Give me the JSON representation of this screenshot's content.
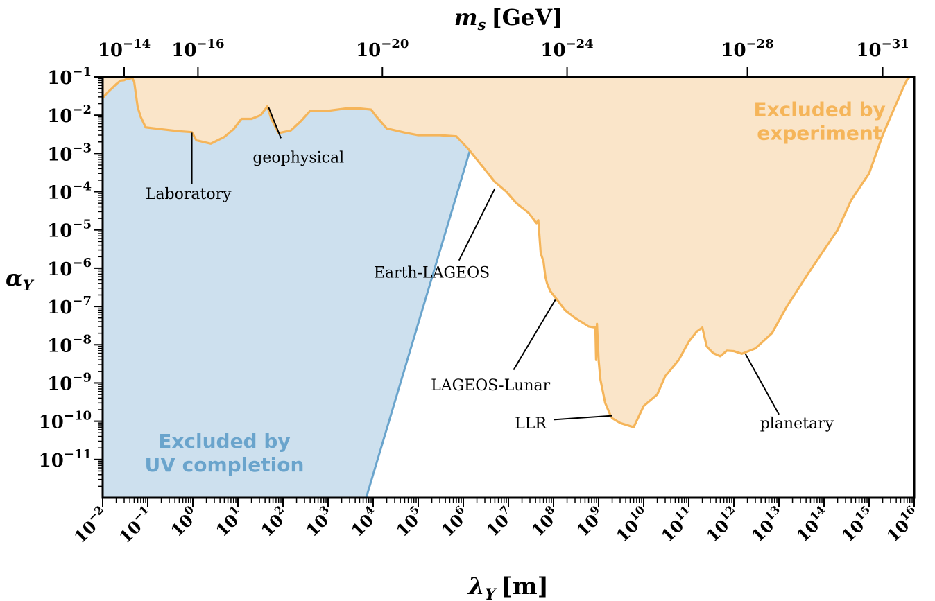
{
  "chart_data": {
    "type": "area",
    "xlabel": "λ",
    "xlabel_sub": "Y",
    "xlabel_unit": "[m]",
    "ylabel": "α",
    "ylabel_sub": "Y",
    "top_axis_label": "m",
    "top_axis_sub": "s",
    "top_axis_unit": "[GeV]",
    "x_scale": "log",
    "y_scale": "log",
    "xlim": [
      0.01,
      1e+16
    ],
    "ylim": [
      1e-12,
      0.1
    ],
    "grid": false,
    "x_ticks": [
      {
        "value": 0.01,
        "exp": "−2"
      },
      {
        "value": 0.1,
        "exp": "−1"
      },
      {
        "value": 1,
        "exp": "0"
      },
      {
        "value": 10,
        "exp": "1"
      },
      {
        "value": 100,
        "exp": "2"
      },
      {
        "value": 1000,
        "exp": "3"
      },
      {
        "value": 10000,
        "exp": "4"
      },
      {
        "value": 100000,
        "exp": "5"
      },
      {
        "value": 1000000,
        "exp": "6"
      },
      {
        "value": 10000000,
        "exp": "7"
      },
      {
        "value": 100000000,
        "exp": "8"
      },
      {
        "value": 1000000000,
        "exp": "9"
      },
      {
        "value": 10000000000,
        "exp": "10"
      },
      {
        "value": 100000000000,
        "exp": "11"
      },
      {
        "value": 1000000000000,
        "exp": "12"
      },
      {
        "value": 10000000000000,
        "exp": "13"
      },
      {
        "value": 100000000000000,
        "exp": "14"
      },
      {
        "value": 1000000000000000,
        "exp": "15"
      },
      {
        "value": 10000000000000000,
        "exp": "16"
      }
    ],
    "y_ticks": [
      {
        "value": 0.1,
        "exp": "−1"
      },
      {
        "value": 0.01,
        "exp": "−2"
      },
      {
        "value": 0.001,
        "exp": "−3"
      },
      {
        "value": 0.0001,
        "exp": "−4"
      },
      {
        "value": 1e-05,
        "exp": "−5"
      },
      {
        "value": 1e-06,
        "exp": "−6"
      },
      {
        "value": 1e-07,
        "exp": "−7"
      },
      {
        "value": 1e-08,
        "exp": "−8"
      },
      {
        "value": 1e-09,
        "exp": "−9"
      },
      {
        "value": 1e-10,
        "exp": "−10"
      },
      {
        "value": 1e-11,
        "exp": "−11"
      }
    ],
    "top_ticks": [
      {
        "lambda": 0.03,
        "exp": "−14"
      },
      {
        "lambda": 1.3,
        "exp": "−16"
      },
      {
        "lambda": 16000.0,
        "exp": "−20"
      },
      {
        "lambda": 200000000.0,
        "exp": "−24"
      },
      {
        "lambda": 2000000000000.0,
        "exp": "−28"
      },
      {
        "lambda": 2000000000000000.0,
        "exp": "−31"
      }
    ],
    "series": [
      {
        "name": "Excluded by experiment",
        "color": "#f5b55a",
        "fill": "#fae5c9",
        "points": [
          [
            0.01,
            0.028
          ],
          [
            0.013,
            0.04
          ],
          [
            0.016,
            0.05
          ],
          [
            0.02,
            0.065
          ],
          [
            0.025,
            0.08
          ],
          [
            0.03,
            0.082
          ],
          [
            0.035,
            0.09
          ],
          [
            0.04,
            0.09
          ],
          [
            0.045,
            0.095
          ],
          [
            0.05,
            0.075
          ],
          [
            0.06,
            0.016
          ],
          [
            0.07,
            0.009
          ],
          [
            0.09,
            0.0048
          ],
          [
            0.2,
            0.0043
          ],
          [
            0.5,
            0.0038
          ],
          [
            0.95,
            0.0036
          ],
          [
            1.2,
            0.0022
          ],
          [
            2.5,
            0.0018
          ],
          [
            5,
            0.0027
          ],
          [
            8,
            0.0043
          ],
          [
            12,
            0.008
          ],
          [
            20,
            0.008
          ],
          [
            32,
            0.01
          ],
          [
            45,
            0.017
          ],
          [
            55,
            0.008
          ],
          [
            80,
            0.0034
          ],
          [
            150,
            0.004
          ],
          [
            250,
            0.007
          ],
          [
            400,
            0.013
          ],
          [
            1000,
            0.013
          ],
          [
            2500,
            0.015
          ],
          [
            5000,
            0.015
          ],
          [
            9000,
            0.014
          ],
          [
            12000,
            0.009
          ],
          [
            20000,
            0.0045
          ],
          [
            50000,
            0.0035
          ],
          [
            100000,
            0.003
          ],
          [
            300000,
            0.003
          ],
          [
            700000,
            0.0028
          ],
          [
            1300000,
            0.0013
          ],
          [
            2500000,
            0.0005
          ],
          [
            5000000,
            0.00018
          ],
          [
            9000000,
            0.0001
          ],
          [
            15000000,
            5e-05
          ],
          [
            28000000,
            2.8e-05
          ],
          [
            42000000,
            1.5e-05
          ],
          [
            46000000,
            1.8e-05
          ],
          [
            52000000,
            2.5e-06
          ],
          [
            60000000,
            1.5e-06
          ],
          [
            66000000,
            6e-07
          ],
          [
            72000000,
            4e-07
          ],
          [
            85000000,
            2.5e-07
          ],
          [
            120000000,
            1.5e-07
          ],
          [
            180000000,
            8e-08
          ],
          [
            300000000,
            5e-08
          ],
          [
            600000000,
            3e-08
          ],
          [
            850000000,
            2.8e-08
          ],
          [
            880000000,
            4e-09
          ],
          [
            920000000,
            3.5e-08
          ],
          [
            1000000000,
            4e-09
          ],
          [
            1100000000,
            1.2e-09
          ],
          [
            1400000000,
            3e-10
          ],
          [
            1800000000,
            1.5e-10
          ],
          [
            2000000000,
            1.2e-10
          ],
          [
            3000000000,
            9e-11
          ],
          [
            6000000000,
            7e-11
          ],
          [
            10000000000,
            2.5e-10
          ],
          [
            20000000000,
            5e-10
          ],
          [
            30000000000,
            1.5e-09
          ],
          [
            60000000000,
            4e-09
          ],
          [
            100000000000,
            1.2e-08
          ],
          [
            150000000000,
            2.2e-08
          ],
          [
            200000000000,
            2.8e-08
          ],
          [
            250000000000,
            9e-09
          ],
          [
            350000000000,
            6e-09
          ],
          [
            500000000000,
            5e-09
          ],
          [
            700000000000,
            7e-09
          ],
          [
            1000000000000,
            6.8e-09
          ],
          [
            1500000000000,
            5.8e-09
          ],
          [
            3000000000000,
            8e-09
          ],
          [
            7000000000000,
            2e-08
          ],
          [
            15000000000000,
            1e-07
          ],
          [
            40000000000000,
            6e-07
          ],
          [
            100000000000000,
            3e-06
          ],
          [
            200000000000000,
            1e-05
          ],
          [
            400000000000000,
            6e-05
          ],
          [
            1000000000000000,
            0.0003
          ],
          [
            2000000000000000,
            0.003
          ],
          [
            4000000000000000,
            0.02
          ],
          [
            6000000000000000,
            0.06
          ],
          [
            7000000000000000,
            0.085
          ],
          [
            8000000000000000,
            0.1
          ]
        ]
      },
      {
        "name": "Excluded by UV completion",
        "color": "#6aa4cc",
        "fill": "#cde0ee",
        "boundary": [
          [
            7000,
            1e-12
          ],
          [
            1400000,
            0.0012
          ]
        ]
      }
    ],
    "annotations": [
      {
        "text": "Laboratory",
        "label_at": [
          0.8,
          9e-05
        ],
        "anchor": "middle",
        "pointer_from": [
          0.95,
          0.00016
        ],
        "pointer_to": [
          0.95,
          0.0035
        ]
      },
      {
        "text": "geophysical",
        "label_at": [
          220,
          0.0008
        ],
        "anchor": "middle",
        "pointer_from": [
          90,
          0.0025
        ],
        "pointer_to": [
          48,
          0.016
        ]
      },
      {
        "text": "Earth-LAGEOS",
        "label_at": [
          200000,
          8e-07
        ],
        "anchor": "middle",
        "pointer_from": [
          800000,
          1.6e-06
        ],
        "pointer_to": [
          5000000,
          0.00012
        ]
      },
      {
        "text": "LAGEOS-Lunar",
        "label_at": [
          4000000,
          9e-10
        ],
        "anchor": "middle",
        "pointer_from": [
          13000000,
          2.2e-09
        ],
        "pointer_to": [
          110000000,
          1.5e-07
        ]
      },
      {
        "text": "LLR",
        "label_at": [
          70000000,
          9e-11
        ],
        "anchor": "end",
        "pointer_from": [
          100000000,
          1.1e-10
        ],
        "pointer_to": [
          2000000000,
          1.4e-10
        ]
      },
      {
        "text": "planetary",
        "label_at": [
          25000000000000,
          9e-11
        ],
        "anchor": "middle",
        "pointer_from": [
          10000000000000,
          1.5e-10
        ],
        "pointer_to": [
          1800000000000,
          5.8e-09
        ]
      }
    ],
    "region_labels": [
      {
        "lines": [
          "Excluded by",
          "experiment"
        ],
        "color": "#f5b55a",
        "at": [
          80000000000000.0,
          0.0095
        ]
      },
      {
        "lines": [
          "Excluded by",
          "UV completion"
        ],
        "color": "#6aa4cc",
        "at": [
          5,
          2e-11
        ]
      }
    ]
  }
}
